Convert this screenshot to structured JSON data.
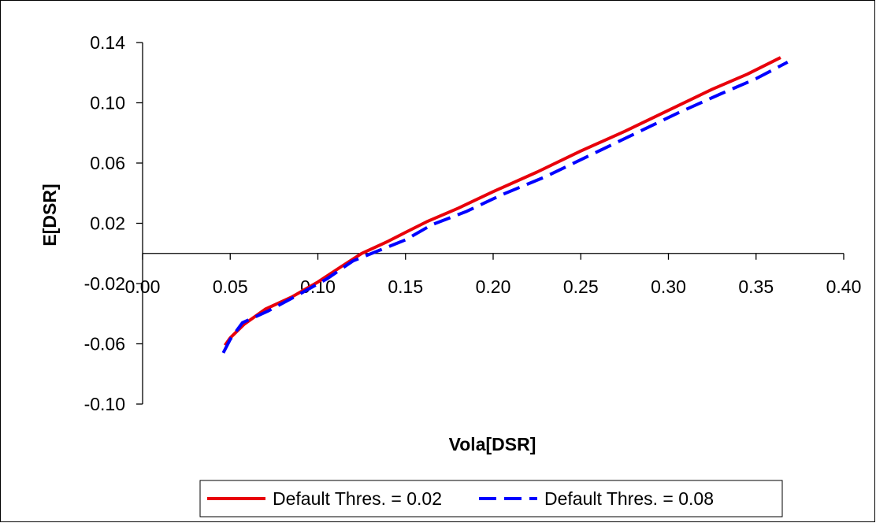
{
  "chart_data": {
    "type": "line",
    "title": "",
    "xlabel": "Vola[DSR]",
    "ylabel": "E[DSR]",
    "xlim": [
      0.0,
      0.4
    ],
    "ylim": [
      -0.1,
      0.14
    ],
    "x_ticks": [
      "0.00",
      "0.05",
      "0.10",
      "0.15",
      "0.20",
      "0.25",
      "0.30",
      "0.35",
      "0.40"
    ],
    "y_ticks": [
      "0.14",
      "0.10",
      "0.06",
      "0.02",
      "-0.02",
      "-0.06",
      "-0.10"
    ],
    "grid": false,
    "legend_position": "bottom",
    "series": [
      {
        "name": "Default Thres. = 0.02",
        "color": "#e8000b",
        "style": "solid",
        "points": [
          [
            0.047,
            -0.061
          ],
          [
            0.05,
            -0.056
          ],
          [
            0.058,
            -0.047
          ],
          [
            0.07,
            -0.037
          ],
          [
            0.085,
            -0.029
          ],
          [
            0.1,
            -0.019
          ],
          [
            0.113,
            -0.009
          ],
          [
            0.125,
            0.0
          ],
          [
            0.14,
            0.008
          ],
          [
            0.15,
            0.014
          ],
          [
            0.162,
            0.021
          ],
          [
            0.18,
            0.03
          ],
          [
            0.2,
            0.041
          ],
          [
            0.225,
            0.054
          ],
          [
            0.25,
            0.068
          ],
          [
            0.275,
            0.081
          ],
          [
            0.3,
            0.095
          ],
          [
            0.325,
            0.109
          ],
          [
            0.345,
            0.119
          ],
          [
            0.364,
            0.13
          ]
        ]
      },
      {
        "name": "Default Thres. = 0.08",
        "color": "#0000ff",
        "style": "dashed",
        "points": [
          [
            0.046,
            -0.066
          ],
          [
            0.05,
            -0.057
          ],
          [
            0.057,
            -0.046
          ],
          [
            0.072,
            -0.038
          ],
          [
            0.088,
            -0.028
          ],
          [
            0.105,
            -0.017
          ],
          [
            0.12,
            -0.005
          ],
          [
            0.135,
            0.002
          ],
          [
            0.15,
            0.009
          ],
          [
            0.165,
            0.019
          ],
          [
            0.185,
            0.028
          ],
          [
            0.205,
            0.039
          ],
          [
            0.23,
            0.051
          ],
          [
            0.255,
            0.065
          ],
          [
            0.28,
            0.079
          ],
          [
            0.305,
            0.093
          ],
          [
            0.33,
            0.106
          ],
          [
            0.35,
            0.116
          ],
          [
            0.368,
            0.127
          ]
        ]
      }
    ]
  }
}
